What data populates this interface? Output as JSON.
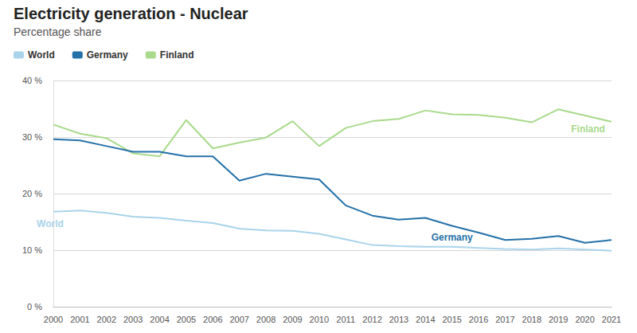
{
  "chart_data": {
    "type": "line",
    "title": "Electricity generation - Nuclear",
    "subtitle": "Percentage share",
    "categories": [
      "2000",
      "2001",
      "2002",
      "2003",
      "2004",
      "2005",
      "2006",
      "2007",
      "2008",
      "2009",
      "2010",
      "2011",
      "2012",
      "2013",
      "2014",
      "2015",
      "2016",
      "2017",
      "2018",
      "2019",
      "2020",
      "2021"
    ],
    "series": [
      {
        "name": "World",
        "color": "#a9d3ea",
        "values": [
          16.8,
          17.0,
          16.6,
          15.9,
          15.7,
          15.2,
          14.8,
          13.8,
          13.5,
          13.4,
          12.9,
          11.9,
          10.9,
          10.7,
          10.6,
          10.6,
          10.4,
          10.2,
          10.1,
          10.3,
          10.1,
          9.9
        ]
      },
      {
        "name": "Germany",
        "color": "#2470a8",
        "values": [
          29.6,
          29.4,
          28.4,
          27.4,
          27.4,
          26.6,
          26.6,
          22.3,
          23.5,
          23.0,
          22.5,
          17.9,
          16.1,
          15.4,
          15.7,
          14.3,
          13.1,
          11.8,
          12.0,
          12.5,
          11.3,
          11.8
        ]
      },
      {
        "name": "Finland",
        "color": "#a9d98b",
        "values": [
          32.2,
          30.6,
          29.8,
          27.1,
          26.6,
          33.0,
          28.0,
          29.0,
          29.9,
          32.8,
          28.4,
          31.6,
          32.8,
          33.2,
          34.7,
          34.0,
          33.9,
          33.4,
          32.6,
          34.9,
          33.8,
          32.7
        ]
      }
    ],
    "ylim": [
      0,
      40
    ],
    "yticks": [
      {
        "value": 0,
        "label": "0 %"
      },
      {
        "value": 10,
        "label": "10 %"
      },
      {
        "value": 20,
        "label": "20 %"
      },
      {
        "value": 30,
        "label": "30 %"
      },
      {
        "value": 40,
        "label": "40 %"
      }
    ],
    "grid": true,
    "legend": "top-left"
  }
}
